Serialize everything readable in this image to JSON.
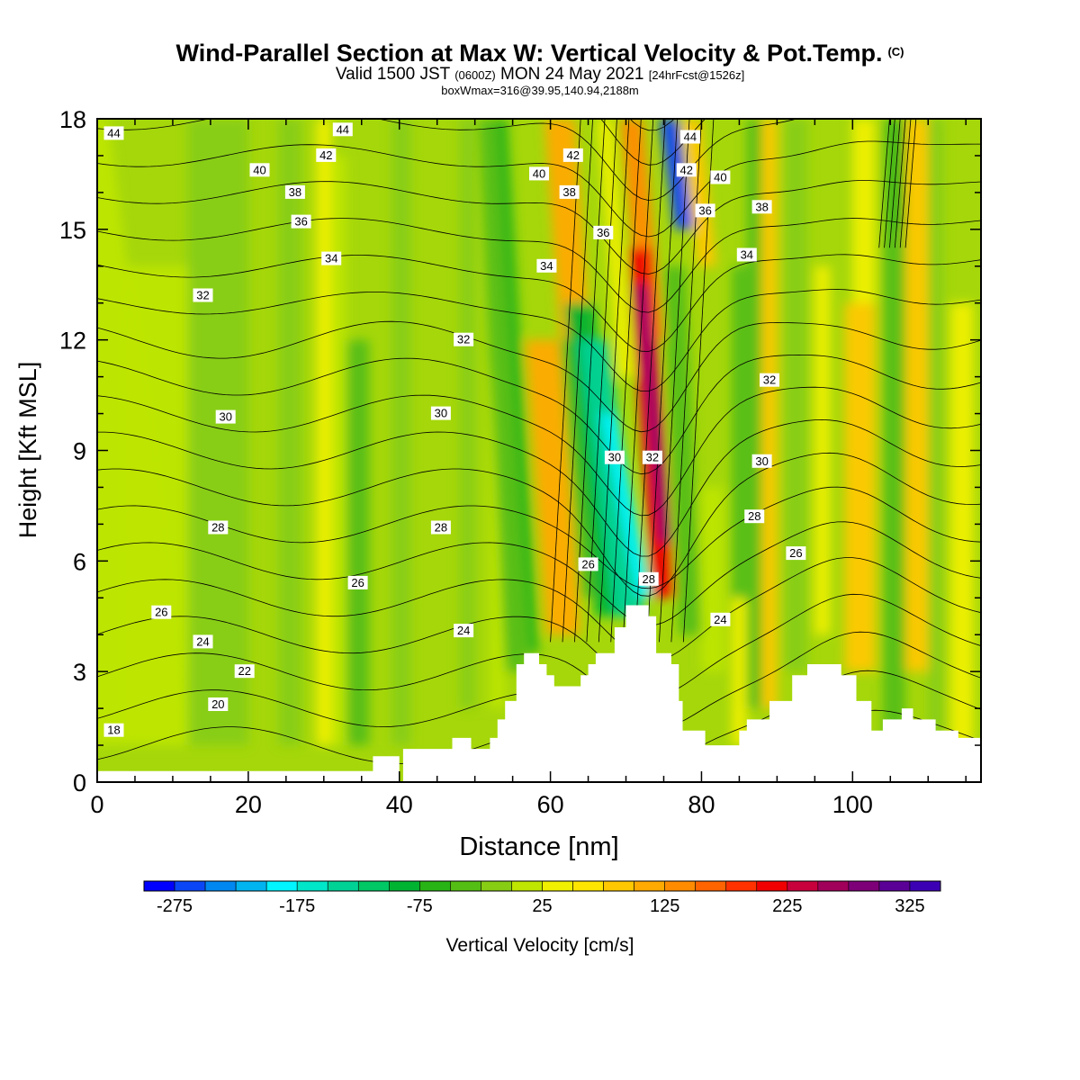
{
  "title": {
    "main": "Wind-Parallel Section at Max W: Vertical Velocity & Pot.Temp.",
    "copyright_mark": "(C)",
    "valid_prefix": "Valid 1500 JST",
    "valid_utc": "(0600Z)",
    "valid_date": "MON 24 May 2021",
    "forecast": "[24hrFcst@1526z]",
    "box_info": "boxWmax=316@39.95,140.94,2188m"
  },
  "chart_data": {
    "type": "heatmap",
    "xlabel": "Distance [nm]",
    "ylabel": "Height [Kft MSL]",
    "xlim": [
      0,
      117
    ],
    "ylim": [
      0,
      18
    ],
    "xticks": [
      0,
      20,
      40,
      60,
      80,
      100
    ],
    "yticks": [
      0,
      3,
      6,
      9,
      12,
      15,
      18
    ],
    "colorbar": {
      "label": "Vertical Velocity [cm/s]",
      "ticks": [
        -275,
        -175,
        -75,
        25,
        125,
        225,
        325
      ],
      "levels": [
        -300,
        -275,
        -250,
        -225,
        -200,
        -175,
        -150,
        -125,
        -100,
        -75,
        -50,
        -25,
        0,
        25,
        50,
        75,
        100,
        125,
        150,
        175,
        200,
        225,
        250,
        275,
        300,
        325,
        350
      ],
      "colors": [
        "#0000ff",
        "#0a46f5",
        "#0087f0",
        "#00b4f0",
        "#00f5ff",
        "#00e6c8",
        "#00d296",
        "#00c864",
        "#00b432",
        "#28b414",
        "#55be14",
        "#87cd14",
        "#bee600",
        "#f0f000",
        "#ffe600",
        "#ffc800",
        "#ffaa00",
        "#ff8c00",
        "#ff6400",
        "#ff3200",
        "#f00000",
        "#c8003c",
        "#a0005a",
        "#7d0078",
        "#5a0096",
        "#3c00b4"
      ]
    },
    "theta_contours_label": "Pot.Temp.",
    "theta_contour_values": [
      18,
      20,
      22,
      24,
      26,
      28,
      30,
      32,
      34,
      36,
      38,
      40,
      42,
      44
    ],
    "contour_labels": [
      {
        "x": 2.2,
        "y": 17.6,
        "text": "44"
      },
      {
        "x": 32.5,
        "y": 17.7,
        "text": "44"
      },
      {
        "x": 30.3,
        "y": 17.0,
        "text": "42"
      },
      {
        "x": 21.5,
        "y": 16.6,
        "text": "40"
      },
      {
        "x": 26.2,
        "y": 16.0,
        "text": "38"
      },
      {
        "x": 27.0,
        "y": 15.2,
        "text": "36"
      },
      {
        "x": 31.0,
        "y": 14.2,
        "text": "34"
      },
      {
        "x": 14.0,
        "y": 13.2,
        "text": "32"
      },
      {
        "x": 48.5,
        "y": 12.0,
        "text": "32"
      },
      {
        "x": 17.0,
        "y": 9.9,
        "text": "30"
      },
      {
        "x": 45.5,
        "y": 10.0,
        "text": "30"
      },
      {
        "x": 16.0,
        "y": 6.9,
        "text": "28"
      },
      {
        "x": 45.5,
        "y": 6.9,
        "text": "28"
      },
      {
        "x": 34.5,
        "y": 5.4,
        "text": "26"
      },
      {
        "x": 8.5,
        "y": 4.6,
        "text": "26"
      },
      {
        "x": 14.0,
        "y": 3.8,
        "text": "24"
      },
      {
        "x": 48.5,
        "y": 4.1,
        "text": "24"
      },
      {
        "x": 19.5,
        "y": 3.0,
        "text": "22"
      },
      {
        "x": 16.0,
        "y": 2.1,
        "text": "20"
      },
      {
        "x": 2.2,
        "y": 1.4,
        "text": "18"
      },
      {
        "x": 58.5,
        "y": 16.5,
        "text": "40"
      },
      {
        "x": 63.0,
        "y": 17.0,
        "text": "42"
      },
      {
        "x": 62.5,
        "y": 16.0,
        "text": "38"
      },
      {
        "x": 67.0,
        "y": 14.9,
        "text": "36"
      },
      {
        "x": 59.5,
        "y": 14.0,
        "text": "34"
      },
      {
        "x": 68.5,
        "y": 8.8,
        "text": "30"
      },
      {
        "x": 73.5,
        "y": 8.8,
        "text": "32"
      },
      {
        "x": 65.0,
        "y": 5.9,
        "text": "26"
      },
      {
        "x": 73.0,
        "y": 5.5,
        "text": "28"
      },
      {
        "x": 78.5,
        "y": 17.5,
        "text": "44"
      },
      {
        "x": 78.0,
        "y": 16.6,
        "text": "42"
      },
      {
        "x": 82.5,
        "y": 16.4,
        "text": "40"
      },
      {
        "x": 80.5,
        "y": 15.5,
        "text": "36"
      },
      {
        "x": 88.0,
        "y": 15.6,
        "text": "38"
      },
      {
        "x": 86.0,
        "y": 14.3,
        "text": "34"
      },
      {
        "x": 89.0,
        "y": 10.9,
        "text": "32"
      },
      {
        "x": 88.0,
        "y": 8.7,
        "text": "30"
      },
      {
        "x": 87.0,
        "y": 7.2,
        "text": "28"
      },
      {
        "x": 92.5,
        "y": 6.2,
        "text": "26"
      },
      {
        "x": 82.5,
        "y": 4.4,
        "text": "24"
      }
    ],
    "terrain_profile": [
      [
        0,
        0.3
      ],
      [
        36.5,
        0.3
      ],
      [
        36.5,
        0.7
      ],
      [
        40,
        0.7
      ],
      [
        40,
        0
      ],
      [
        40.5,
        0
      ],
      [
        40.5,
        0.9
      ],
      [
        47,
        0.9
      ],
      [
        47,
        1.2
      ],
      [
        49.5,
        1.2
      ],
      [
        49.5,
        0.9
      ],
      [
        52,
        0.9
      ],
      [
        52,
        1.2
      ],
      [
        53,
        1.2
      ],
      [
        53,
        1.7
      ],
      [
        54,
        1.7
      ],
      [
        54,
        2.2
      ],
      [
        55.5,
        2.2
      ],
      [
        55.5,
        3.2
      ],
      [
        56.5,
        3.2
      ],
      [
        56.5,
        3.5
      ],
      [
        58.5,
        3.5
      ],
      [
        58.5,
        3.2
      ],
      [
        59.5,
        3.2
      ],
      [
        59.5,
        2.9
      ],
      [
        60.5,
        2.9
      ],
      [
        60.5,
        2.6
      ],
      [
        64,
        2.6
      ],
      [
        64,
        2.9
      ],
      [
        65,
        2.9
      ],
      [
        65,
        3.2
      ],
      [
        66,
        3.2
      ],
      [
        66,
        3.5
      ],
      [
        68.5,
        3.5
      ],
      [
        68.5,
        4.2
      ],
      [
        70,
        4.2
      ],
      [
        70,
        4.8
      ],
      [
        73,
        4.8
      ],
      [
        73,
        4.5
      ],
      [
        74,
        4.5
      ],
      [
        74,
        3.5
      ],
      [
        76,
        3.5
      ],
      [
        76,
        3.2
      ],
      [
        77,
        3.2
      ],
      [
        77,
        2.2
      ],
      [
        77.5,
        2.2
      ],
      [
        77.5,
        1.4
      ],
      [
        80.5,
        1.4
      ],
      [
        80.5,
        1.0
      ],
      [
        85,
        1.0
      ],
      [
        85,
        1.4
      ],
      [
        86,
        1.4
      ],
      [
        86,
        1.7
      ],
      [
        89,
        1.7
      ],
      [
        89,
        2.2
      ],
      [
        92,
        2.2
      ],
      [
        92,
        2.9
      ],
      [
        94,
        2.9
      ],
      [
        94,
        3.2
      ],
      [
        98.5,
        3.2
      ],
      [
        98.5,
        2.9
      ],
      [
        100.5,
        2.9
      ],
      [
        100.5,
        2.2
      ],
      [
        102.5,
        2.2
      ],
      [
        102.5,
        1.4
      ],
      [
        104,
        1.4
      ],
      [
        104,
        1.7
      ],
      [
        106.5,
        1.7
      ],
      [
        106.5,
        2.0
      ],
      [
        108,
        2.0
      ],
      [
        108,
        1.7
      ],
      [
        111,
        1.7
      ],
      [
        111,
        1.4
      ],
      [
        114,
        1.4
      ],
      [
        114,
        1.2
      ],
      [
        117,
        1.2
      ],
      [
        117,
        0
      ]
    ]
  }
}
